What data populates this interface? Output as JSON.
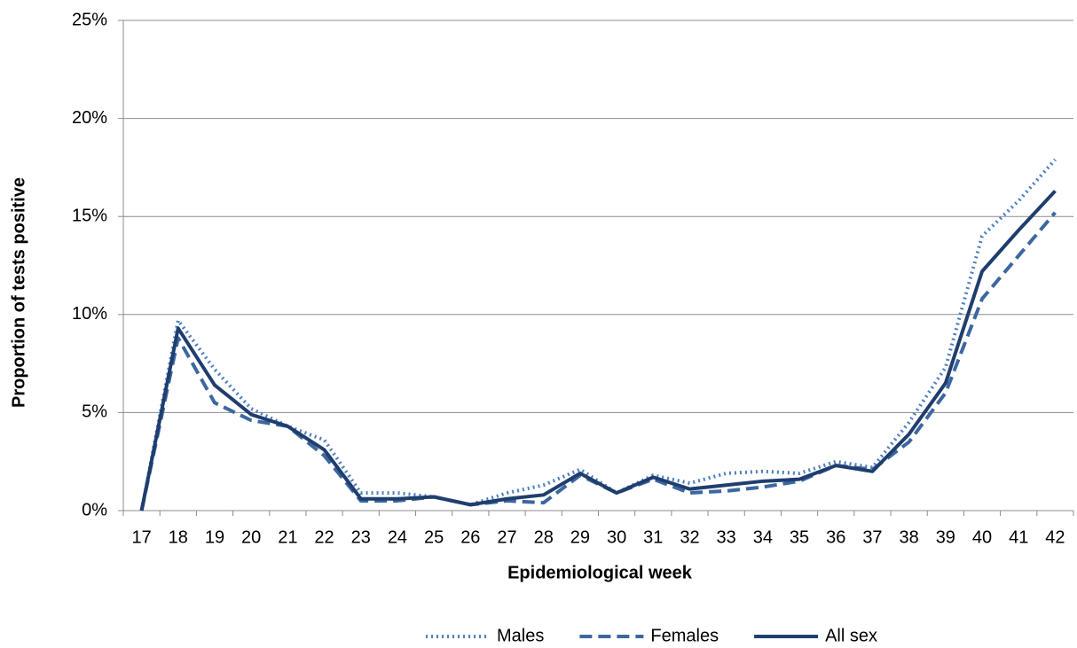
{
  "chart_data": {
    "type": "line",
    "x_label": "Epidemiological week",
    "y_label": "Proportion of tests positive",
    "categories": [
      "17",
      "18",
      "19",
      "20",
      "21",
      "22",
      "23",
      "24",
      "25",
      "26",
      "27",
      "28",
      "29",
      "30",
      "31",
      "32",
      "33",
      "34",
      "35",
      "36",
      "37",
      "38",
      "39",
      "40",
      "41",
      "42"
    ],
    "series": [
      {
        "name": "Males",
        "color": "#4f7fbf",
        "style": "dotted",
        "values": [
          0,
          9.7,
          7.2,
          5.2,
          4.3,
          3.6,
          0.9,
          0.9,
          0.7,
          0.3,
          0.9,
          1.3,
          2.1,
          0.9,
          1.8,
          1.4,
          1.9,
          2.0,
          1.9,
          2.5,
          2.2,
          4.5,
          7.3,
          14.0,
          15.8,
          17.9
        ]
      },
      {
        "name": "Females",
        "color": "#3c67a0",
        "style": "dashed",
        "values": [
          0,
          8.8,
          5.5,
          4.6,
          4.3,
          2.8,
          0.5,
          0.5,
          0.7,
          0.3,
          0.5,
          0.4,
          1.8,
          0.9,
          1.6,
          0.9,
          1.0,
          1.2,
          1.5,
          2.3,
          2.1,
          3.5,
          6.0,
          10.8,
          13.0,
          15.2
        ]
      },
      {
        "name": "All sex",
        "color": "#1f3e6e",
        "style": "solid",
        "values": [
          0,
          9.3,
          6.4,
          4.9,
          4.3,
          3.1,
          0.6,
          0.6,
          0.7,
          0.3,
          0.6,
          0.8,
          1.9,
          0.9,
          1.7,
          1.1,
          1.3,
          1.5,
          1.6,
          2.3,
          2.0,
          3.9,
          6.5,
          12.2,
          14.3,
          16.3
        ]
      }
    ],
    "ylim": [
      0,
      25
    ],
    "yticks": [
      {
        "value": 0,
        "label": "0%"
      },
      {
        "value": 5,
        "label": "5%"
      },
      {
        "value": 10,
        "label": "10%"
      },
      {
        "value": 15,
        "label": "15%"
      },
      {
        "value": 20,
        "label": "20%"
      },
      {
        "value": 25,
        "label": "25%"
      }
    ],
    "grid": true,
    "legend": "bottom"
  }
}
